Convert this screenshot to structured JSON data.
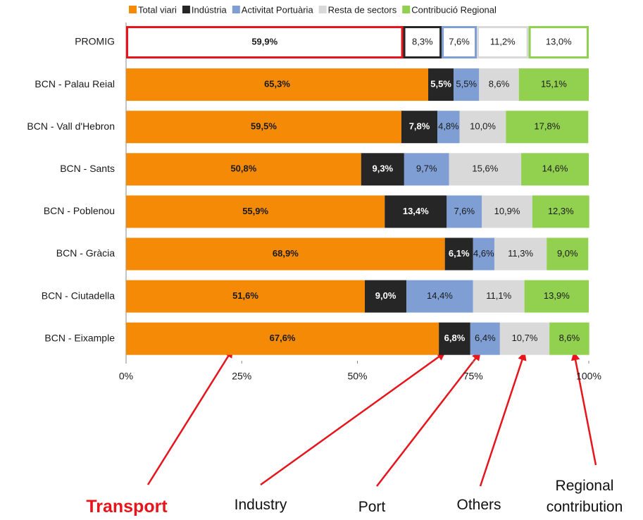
{
  "chart_data": {
    "type": "stacked_barh",
    "categories": [
      "PROMIG",
      "BCN - Palau Reial",
      "BCN - Vall d'Hebron",
      "BCN - Sants",
      "BCN - Poblenou",
      "BCN - Gràcia",
      "BCN - Ciutadella",
      "BCN - Eixample"
    ],
    "series": [
      {
        "name": "Total viari",
        "color": "#f58a07",
        "values": [
          59.9,
          65.3,
          59.5,
          50.8,
          55.9,
          68.9,
          51.6,
          67.6
        ],
        "value_labels": [
          "59,9%",
          "65,3%",
          "59,5%",
          "50,8%",
          "55,9%",
          "68,9%",
          "51,6%",
          "67,6%"
        ]
      },
      {
        "name": "Indústria",
        "color": "#262626",
        "values": [
          8.3,
          5.5,
          7.8,
          9.3,
          13.4,
          6.1,
          9.0,
          6.8
        ],
        "value_labels": [
          "8,3%",
          "5,5%",
          "7,8%",
          "9,3%",
          "13,4%",
          "6,1%",
          "9,0%",
          "6,8%"
        ]
      },
      {
        "name": "Activitat Portuària",
        "color": "#7f9fd4",
        "values": [
          7.6,
          5.5,
          4.8,
          9.7,
          7.6,
          4.6,
          14.4,
          6.4
        ],
        "value_labels": [
          "7,6%",
          "5,5%",
          "4,8%",
          "9,7%",
          "7,6%",
          "4,6%",
          "14,4%",
          "6,4%"
        ]
      },
      {
        "name": "Resta de sectors",
        "color": "#d9d9d9",
        "values": [
          11.2,
          8.6,
          10.0,
          15.6,
          10.9,
          11.3,
          11.1,
          10.7
        ],
        "value_labels": [
          "11,2%",
          "8,6%",
          "10,0%",
          "15,6%",
          "10,9%",
          "11,3%",
          "11,1%",
          "10,7%"
        ]
      },
      {
        "name": "Contribució Regional",
        "color": "#92d050",
        "values": [
          13.0,
          15.1,
          17.8,
          14.6,
          12.3,
          9.0,
          13.9,
          8.6
        ],
        "value_labels": [
          "13,0%",
          "15,1%",
          "17,8%",
          "14,6%",
          "12,3%",
          "9,0%",
          "13,9%",
          "8,6%"
        ]
      }
    ],
    "xlim": [
      0,
      100
    ],
    "xticks": [
      {
        "value": 0,
        "label": "0%"
      },
      {
        "value": 25,
        "label": "25%"
      },
      {
        "value": 50,
        "label": "50%"
      },
      {
        "value": 75,
        "label": "75%"
      },
      {
        "value": 100,
        "label": "100%"
      }
    ],
    "legend": "top",
    "annotations": [
      "Transport",
      "Industry",
      "Port",
      "Others",
      "Regional contribution"
    ]
  }
}
